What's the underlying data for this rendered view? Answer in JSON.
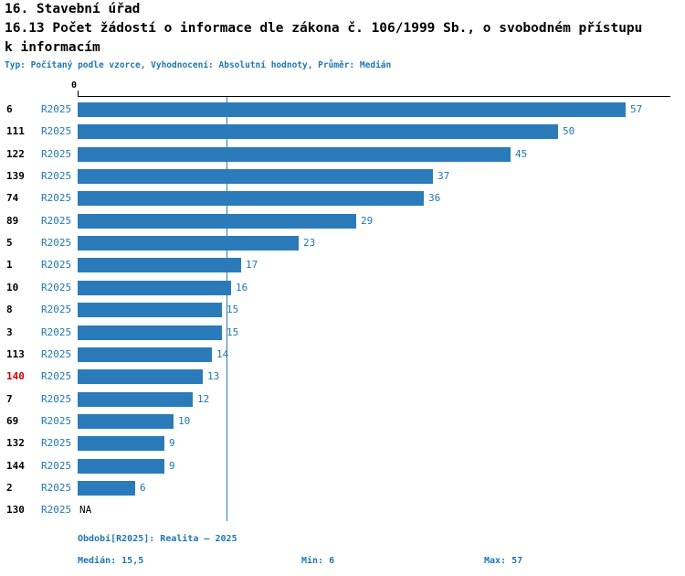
{
  "header": {
    "title": "16. Stavební úřad",
    "subtitle_line1": "16.13 Počet žádostí o informace dle zákona č. 106/1999 Sb., o svobodném přístupu",
    "subtitle_line2": "k informacím",
    "meta": "Typ: Počítaný podle vzorce, Vyhodnocení: Absolutní hodnoty, Průměr: Medián"
  },
  "chart_data": {
    "type": "bar",
    "orientation": "horizontal",
    "title": "16.13 Počet žádostí o informace dle zákona č. 106/1999 Sb., o svobodném přístupu k informacím",
    "axis_tick_label": "0",
    "period_label": "R2025",
    "xlim": [
      0,
      57
    ],
    "median_value": 15.5,
    "min_value": 6,
    "max_value": 57,
    "highlight_id": "140",
    "rows": [
      {
        "id": "6",
        "value": 57,
        "label": "57"
      },
      {
        "id": "111",
        "value": 50,
        "label": "50"
      },
      {
        "id": "122",
        "value": 45,
        "label": "45"
      },
      {
        "id": "139",
        "value": 37,
        "label": "37"
      },
      {
        "id": "74",
        "value": 36,
        "label": "36"
      },
      {
        "id": "89",
        "value": 29,
        "label": "29"
      },
      {
        "id": "5",
        "value": 23,
        "label": "23"
      },
      {
        "id": "1",
        "value": 17,
        "label": "17"
      },
      {
        "id": "10",
        "value": 16,
        "label": "16"
      },
      {
        "id": "8",
        "value": 15,
        "label": "15"
      },
      {
        "id": "3",
        "value": 15,
        "label": "15"
      },
      {
        "id": "113",
        "value": 14,
        "label": "14"
      },
      {
        "id": "140",
        "value": 13,
        "label": "13"
      },
      {
        "id": "7",
        "value": 12,
        "label": "12"
      },
      {
        "id": "69",
        "value": 10,
        "label": "10"
      },
      {
        "id": "132",
        "value": 9,
        "label": "9"
      },
      {
        "id": "144",
        "value": 9,
        "label": "9"
      },
      {
        "id": "2",
        "value": 6,
        "label": "6"
      },
      {
        "id": "130",
        "value": null,
        "label": "NA"
      }
    ],
    "colors": {
      "bar": "#2b7bba",
      "text_blue": "#1f77b4",
      "highlight_red": "#cc0000"
    }
  },
  "footer": {
    "period": "Období[R2025]: Realita – 2025",
    "median": "Medián: 15,5",
    "min": "Min: 6",
    "max": "Max: 57"
  }
}
